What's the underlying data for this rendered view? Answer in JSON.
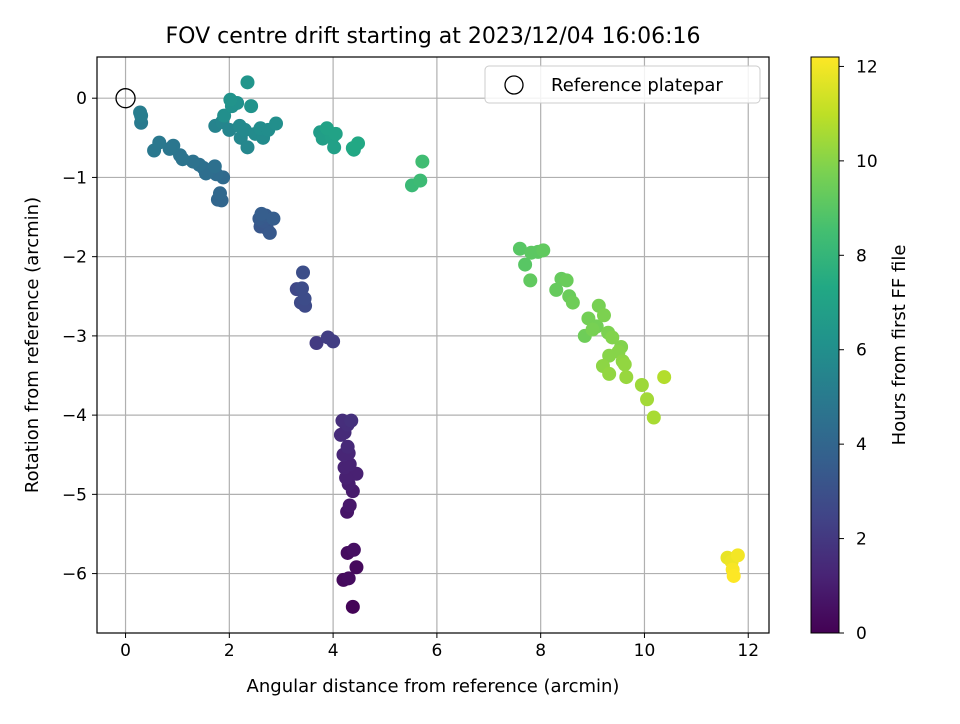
{
  "chart_data": {
    "type": "scatter",
    "title": "FOV centre drift starting at 2023/12/04 16:06:16",
    "xlabel": "Angular distance from reference (arcmin)",
    "ylabel": "Rotation from reference (arcmin)",
    "xlim": [
      -0.55,
      12.4
    ],
    "ylim": [
      -6.75,
      0.52
    ],
    "xticks": [
      0,
      2,
      4,
      6,
      8,
      10,
      12
    ],
    "yticks": [
      0,
      -1,
      -2,
      -3,
      -4,
      -5,
      -6
    ],
    "grid": true,
    "legend": {
      "placement": "top-right",
      "entries": [
        "Reference platepar"
      ]
    },
    "reference_point": {
      "x": 0,
      "y": 0
    },
    "colorbar": {
      "label": "Hours from first FF file",
      "range": [
        0,
        12.2
      ],
      "ticks": [
        0,
        2,
        4,
        6,
        8,
        10,
        12
      ],
      "colormap": "viridis"
    },
    "points": [
      {
        "x": 4.38,
        "y": -6.42,
        "t": 0.1
      },
      {
        "x": 4.45,
        "y": -5.92,
        "t": 0.3
      },
      {
        "x": 4.2,
        "y": -6.08,
        "t": 0.3
      },
      {
        "x": 4.3,
        "y": -6.06,
        "t": 0.4
      },
      {
        "x": 4.28,
        "y": -5.74,
        "t": 0.4
      },
      {
        "x": 4.4,
        "y": -5.7,
        "t": 0.5
      },
      {
        "x": 4.27,
        "y": -5.22,
        "t": 0.7
      },
      {
        "x": 4.32,
        "y": -5.14,
        "t": 0.8
      },
      {
        "x": 4.38,
        "y": -4.96,
        "t": 0.9
      },
      {
        "x": 4.3,
        "y": -4.87,
        "t": 1.0
      },
      {
        "x": 4.35,
        "y": -4.75,
        "t": 1.0
      },
      {
        "x": 4.45,
        "y": -4.74,
        "t": 1.1
      },
      {
        "x": 4.25,
        "y": -4.79,
        "t": 1.1
      },
      {
        "x": 4.22,
        "y": -4.66,
        "t": 1.2
      },
      {
        "x": 4.32,
        "y": -4.62,
        "t": 1.2
      },
      {
        "x": 4.2,
        "y": -4.5,
        "t": 1.3
      },
      {
        "x": 4.3,
        "y": -4.48,
        "t": 1.3
      },
      {
        "x": 4.28,
        "y": -4.4,
        "t": 1.4
      },
      {
        "x": 4.15,
        "y": -4.25,
        "t": 1.5
      },
      {
        "x": 4.22,
        "y": -4.22,
        "t": 1.5
      },
      {
        "x": 4.28,
        "y": -4.12,
        "t": 1.6
      },
      {
        "x": 4.18,
        "y": -4.07,
        "t": 1.6
      },
      {
        "x": 4.35,
        "y": -4.07,
        "t": 1.7
      },
      {
        "x": 3.68,
        "y": -3.09,
        "t": 2.1
      },
      {
        "x": 3.9,
        "y": -3.02,
        "t": 2.2
      },
      {
        "x": 4.0,
        "y": -3.07,
        "t": 2.2
      },
      {
        "x": 3.3,
        "y": -2.41,
        "t": 2.6
      },
      {
        "x": 3.38,
        "y": -2.58,
        "t": 2.7
      },
      {
        "x": 3.46,
        "y": -2.62,
        "t": 2.7
      },
      {
        "x": 3.45,
        "y": -2.53,
        "t": 2.8
      },
      {
        "x": 3.4,
        "y": -2.4,
        "t": 2.8
      },
      {
        "x": 3.42,
        "y": -2.2,
        "t": 2.9
      },
      {
        "x": 2.6,
        "y": -1.62,
        "t": 3.3
      },
      {
        "x": 2.72,
        "y": -1.64,
        "t": 3.3
      },
      {
        "x": 2.78,
        "y": -1.7,
        "t": 3.4
      },
      {
        "x": 2.65,
        "y": -1.55,
        "t": 3.4
      },
      {
        "x": 2.58,
        "y": -1.52,
        "t": 3.5
      },
      {
        "x": 2.7,
        "y": -1.48,
        "t": 3.5
      },
      {
        "x": 2.85,
        "y": -1.52,
        "t": 3.6
      },
      {
        "x": 2.62,
        "y": -1.46,
        "t": 3.6
      },
      {
        "x": 1.85,
        "y": -1.29,
        "t": 4.0
      },
      {
        "x": 1.78,
        "y": -1.28,
        "t": 4.0
      },
      {
        "x": 1.82,
        "y": -1.2,
        "t": 4.1
      },
      {
        "x": 1.88,
        "y": -1.0,
        "t": 4.2
      },
      {
        "x": 1.75,
        "y": -0.96,
        "t": 4.3
      },
      {
        "x": 1.62,
        "y": -0.92,
        "t": 4.3
      },
      {
        "x": 1.55,
        "y": -0.95,
        "t": 4.4
      },
      {
        "x": 1.5,
        "y": -0.88,
        "t": 4.4
      },
      {
        "x": 1.72,
        "y": -0.86,
        "t": 4.5
      },
      {
        "x": 1.42,
        "y": -0.84,
        "t": 4.5
      },
      {
        "x": 1.3,
        "y": -0.8,
        "t": 4.6
      },
      {
        "x": 1.1,
        "y": -0.77,
        "t": 4.7
      },
      {
        "x": 1.05,
        "y": -0.72,
        "t": 4.7
      },
      {
        "x": 0.92,
        "y": -0.6,
        "t": 4.8
      },
      {
        "x": 0.85,
        "y": -0.64,
        "t": 4.8
      },
      {
        "x": 0.65,
        "y": -0.56,
        "t": 4.9
      },
      {
        "x": 0.55,
        "y": -0.66,
        "t": 4.9
      },
      {
        "x": 0.3,
        "y": -0.31,
        "t": 5.0
      },
      {
        "x": 0.28,
        "y": -0.18,
        "t": 5.1
      },
      {
        "x": 0.3,
        "y": -0.22,
        "t": 5.1
      },
      {
        "x": 1.73,
        "y": -0.35,
        "t": 5.4
      },
      {
        "x": 1.86,
        "y": -0.3,
        "t": 5.5
      },
      {
        "x": 2.0,
        "y": -0.4,
        "t": 5.5
      },
      {
        "x": 2.22,
        "y": -0.5,
        "t": 5.6
      },
      {
        "x": 2.35,
        "y": -0.62,
        "t": 5.6
      },
      {
        "x": 2.2,
        "y": -0.35,
        "t": 5.7
      },
      {
        "x": 2.3,
        "y": -0.4,
        "t": 5.7
      },
      {
        "x": 2.5,
        "y": -0.45,
        "t": 5.8
      },
      {
        "x": 2.65,
        "y": -0.5,
        "t": 5.8
      },
      {
        "x": 2.6,
        "y": -0.38,
        "t": 5.9
      },
      {
        "x": 2.75,
        "y": -0.4,
        "t": 5.9
      },
      {
        "x": 2.9,
        "y": -0.32,
        "t": 6.0
      },
      {
        "x": 1.9,
        "y": -0.22,
        "t": 6.0
      },
      {
        "x": 2.05,
        "y": -0.1,
        "t": 6.1
      },
      {
        "x": 2.15,
        "y": -0.06,
        "t": 6.1
      },
      {
        "x": 2.42,
        "y": -0.1,
        "t": 6.2
      },
      {
        "x": 2.02,
        "y": -0.02,
        "t": 6.2
      },
      {
        "x": 2.35,
        "y": 0.2,
        "t": 6.3
      },
      {
        "x": 3.75,
        "y": -0.43,
        "t": 6.7
      },
      {
        "x": 3.8,
        "y": -0.51,
        "t": 6.8
      },
      {
        "x": 3.92,
        "y": -0.45,
        "t": 6.8
      },
      {
        "x": 3.98,
        "y": -0.5,
        "t": 6.9
      },
      {
        "x": 4.02,
        "y": -0.62,
        "t": 6.9
      },
      {
        "x": 3.88,
        "y": -0.38,
        "t": 7.0
      },
      {
        "x": 4.05,
        "y": -0.45,
        "t": 7.0
      },
      {
        "x": 4.4,
        "y": -0.65,
        "t": 7.2
      },
      {
        "x": 4.48,
        "y": -0.57,
        "t": 7.3
      },
      {
        "x": 4.38,
        "y": -0.63,
        "t": 7.3
      },
      {
        "x": 5.52,
        "y": -1.1,
        "t": 8.2
      },
      {
        "x": 5.68,
        "y": -1.04,
        "t": 8.3
      },
      {
        "x": 5.72,
        "y": -0.8,
        "t": 8.4
      },
      {
        "x": 7.6,
        "y": -1.9,
        "t": 9.0
      },
      {
        "x": 7.7,
        "y": -2.1,
        "t": 9.0
      },
      {
        "x": 7.82,
        "y": -1.95,
        "t": 9.1
      },
      {
        "x": 7.95,
        "y": -1.94,
        "t": 9.1
      },
      {
        "x": 8.05,
        "y": -1.92,
        "t": 9.2
      },
      {
        "x": 7.8,
        "y": -2.3,
        "t": 9.2
      },
      {
        "x": 8.3,
        "y": -2.42,
        "t": 9.3
      },
      {
        "x": 8.4,
        "y": -2.28,
        "t": 9.3
      },
      {
        "x": 8.5,
        "y": -2.3,
        "t": 9.4
      },
      {
        "x": 8.55,
        "y": -2.5,
        "t": 9.4
      },
      {
        "x": 8.62,
        "y": -2.58,
        "t": 9.5
      },
      {
        "x": 8.85,
        "y": -3.0,
        "t": 9.5
      },
      {
        "x": 8.92,
        "y": -2.78,
        "t": 9.6
      },
      {
        "x": 9.08,
        "y": -2.88,
        "t": 9.6
      },
      {
        "x": 9.0,
        "y": -2.92,
        "t": 9.7
      },
      {
        "x": 9.12,
        "y": -2.62,
        "t": 9.7
      },
      {
        "x": 9.22,
        "y": -2.74,
        "t": 9.8
      },
      {
        "x": 9.3,
        "y": -2.96,
        "t": 9.8
      },
      {
        "x": 9.38,
        "y": -3.02,
        "t": 9.9
      },
      {
        "x": 9.55,
        "y": -3.14,
        "t": 9.9
      },
      {
        "x": 9.5,
        "y": -3.2,
        "t": 10.0
      },
      {
        "x": 9.32,
        "y": -3.25,
        "t": 10.0
      },
      {
        "x": 9.2,
        "y": -3.38,
        "t": 10.1
      },
      {
        "x": 9.58,
        "y": -3.32,
        "t": 10.1
      },
      {
        "x": 9.62,
        "y": -3.36,
        "t": 10.2
      },
      {
        "x": 9.32,
        "y": -3.48,
        "t": 10.2
      },
      {
        "x": 9.65,
        "y": -3.52,
        "t": 10.3
      },
      {
        "x": 9.95,
        "y": -3.62,
        "t": 10.4
      },
      {
        "x": 10.05,
        "y": -3.8,
        "t": 10.5
      },
      {
        "x": 10.18,
        "y": -4.03,
        "t": 10.6
      },
      {
        "x": 10.38,
        "y": -3.52,
        "t": 10.8
      },
      {
        "x": 11.6,
        "y": -5.8,
        "t": 11.8
      },
      {
        "x": 11.68,
        "y": -5.85,
        "t": 11.9
      },
      {
        "x": 11.8,
        "y": -5.77,
        "t": 12.0
      },
      {
        "x": 11.7,
        "y": -5.95,
        "t": 12.1
      },
      {
        "x": 11.72,
        "y": -6.03,
        "t": 12.2
      }
    ]
  }
}
